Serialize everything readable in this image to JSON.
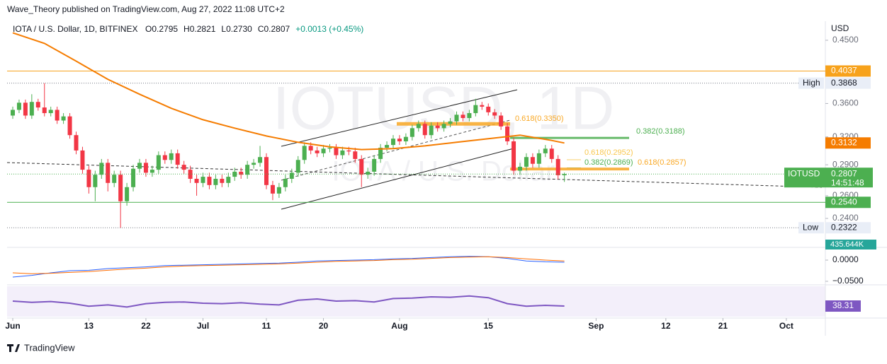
{
  "chart_data": {
    "type": "candlestick",
    "publisher": "Wave_Theory published on TradingView.com, Aug 27, 2022 11:08 UTC+2",
    "symbol": "IOTA / U.S. Dollar, 1D, BITFINEX",
    "ohlc_legend": [
      "O0.2795",
      "H0.2821",
      "L0.2730",
      "C0.2807",
      "+0.0013 (+0.45%)"
    ],
    "watermark": "IOTUSD, 1D",
    "watermark_sub": "IOTA / U.S. Dollar",
    "currency": "USD",
    "ticker": "IOTUSD",
    "countdown": "14:51:48",
    "volume_label": "435.644K",
    "footer": "TradingView",
    "log_scale": true,
    "up_color": "#4caf50",
    "down_color": "#f23645",
    "xlim": [
      -0.9,
      128.2
    ],
    "xticks": [
      {
        "value": 0,
        "label": "Jun"
      },
      {
        "value": 12,
        "label": "13"
      },
      {
        "value": 21,
        "label": "22"
      },
      {
        "value": 30,
        "label": "Jul"
      },
      {
        "value": 40,
        "label": "11"
      },
      {
        "value": 49,
        "label": "20"
      },
      {
        "value": 61,
        "label": "Aug"
      },
      {
        "value": 75,
        "label": "15"
      },
      {
        "value": 92,
        "label": "Sep"
      },
      {
        "value": 103,
        "label": "12"
      },
      {
        "value": 112,
        "label": "21"
      },
      {
        "value": 122,
        "label": "Oct"
      }
    ],
    "ylim": [
      0.2194,
      0.4813
    ],
    "yticks": [
      {
        "value": 0.45,
        "label": "0.4500"
      },
      {
        "value": 0.36,
        "label": "0.3600"
      },
      {
        "value": 0.32,
        "label": "0.3200"
      },
      {
        "value": 0.29,
        "label": "0.2900"
      },
      {
        "value": 0.26,
        "label": "0.2600"
      },
      {
        "value": 0.24,
        "label": "0.2400"
      }
    ],
    "candles": [
      [
        0.345,
        0.356,
        0.341,
        0.352
      ],
      [
        0.352,
        0.365,
        0.348,
        0.361
      ],
      [
        0.361,
        0.365,
        0.341,
        0.345
      ],
      [
        0.345,
        0.372,
        0.341,
        0.362
      ],
      [
        0.362,
        0.366,
        0.351,
        0.355
      ],
      [
        0.355,
        0.3868,
        0.344,
        0.348
      ],
      [
        0.348,
        0.356,
        0.344,
        0.352
      ],
      [
        0.352,
        0.356,
        0.335,
        0.339
      ],
      [
        0.339,
        0.348,
        0.335,
        0.344
      ],
      [
        0.344,
        0.348,
        0.318,
        0.322
      ],
      [
        0.322,
        0.326,
        0.301,
        0.305
      ],
      [
        0.305,
        0.309,
        0.281,
        0.285
      ],
      [
        0.285,
        0.289,
        0.262,
        0.268
      ],
      [
        0.268,
        0.284,
        0.255,
        0.28
      ],
      [
        0.28,
        0.296,
        0.276,
        0.292
      ],
      [
        0.292,
        0.296,
        0.264,
        0.272
      ],
      [
        0.272,
        0.284,
        0.268,
        0.28
      ],
      [
        0.28,
        0.284,
        0.2322,
        0.255
      ],
      [
        0.255,
        0.272,
        0.251,
        0.268
      ],
      [
        0.268,
        0.29,
        0.264,
        0.286
      ],
      [
        0.286,
        0.296,
        0.282,
        0.292
      ],
      [
        0.292,
        0.296,
        0.278,
        0.282
      ],
      [
        0.282,
        0.289,
        0.278,
        0.285
      ],
      [
        0.285,
        0.304,
        0.281,
        0.3
      ],
      [
        0.3,
        0.304,
        0.291,
        0.295
      ],
      [
        0.295,
        0.306,
        0.291,
        0.302
      ],
      [
        0.302,
        0.306,
        0.286,
        0.29
      ],
      [
        0.29,
        0.294,
        0.281,
        0.285
      ],
      [
        0.285,
        0.289,
        0.272,
        0.276
      ],
      [
        0.276,
        0.28,
        0.26,
        0.272
      ],
      [
        0.272,
        0.282,
        0.268,
        0.278
      ],
      [
        0.278,
        0.282,
        0.266,
        0.27
      ],
      [
        0.27,
        0.28,
        0.266,
        0.276
      ],
      [
        0.276,
        0.28,
        0.268,
        0.272
      ],
      [
        0.272,
        0.282,
        0.268,
        0.278
      ],
      [
        0.278,
        0.287,
        0.274,
        0.283
      ],
      [
        0.283,
        0.287,
        0.276,
        0.28
      ],
      [
        0.28,
        0.294,
        0.276,
        0.29
      ],
      [
        0.29,
        0.296,
        0.286,
        0.292
      ],
      [
        0.292,
        0.31,
        0.288,
        0.298
      ],
      [
        0.298,
        0.302,
        0.266,
        0.27
      ],
      [
        0.27,
        0.274,
        0.256,
        0.262
      ],
      [
        0.262,
        0.272,
        0.258,
        0.268
      ],
      [
        0.268,
        0.28,
        0.264,
        0.276
      ],
      [
        0.276,
        0.286,
        0.272,
        0.282
      ],
      [
        0.282,
        0.299,
        0.278,
        0.295
      ],
      [
        0.295,
        0.314,
        0.291,
        0.31
      ],
      [
        0.31,
        0.314,
        0.301,
        0.305
      ],
      [
        0.305,
        0.309,
        0.298,
        0.302
      ],
      [
        0.302,
        0.311,
        0.298,
        0.307
      ],
      [
        0.307,
        0.312,
        0.303,
        0.308
      ],
      [
        0.308,
        0.312,
        0.296,
        0.3
      ],
      [
        0.3,
        0.309,
        0.296,
        0.305
      ],
      [
        0.305,
        0.309,
        0.3,
        0.304
      ],
      [
        0.304,
        0.308,
        0.292,
        0.296
      ],
      [
        0.296,
        0.3,
        0.268,
        0.28
      ],
      [
        0.28,
        0.287,
        0.276,
        0.283
      ],
      [
        0.283,
        0.3,
        0.279,
        0.296
      ],
      [
        0.296,
        0.312,
        0.292,
        0.308
      ],
      [
        0.308,
        0.315,
        0.304,
        0.311
      ],
      [
        0.311,
        0.322,
        0.307,
        0.318
      ],
      [
        0.318,
        0.322,
        0.311,
        0.315
      ],
      [
        0.315,
        0.324,
        0.311,
        0.32
      ],
      [
        0.32,
        0.334,
        0.316,
        0.33
      ],
      [
        0.33,
        0.339,
        0.326,
        0.335
      ],
      [
        0.335,
        0.339,
        0.318,
        0.322
      ],
      [
        0.322,
        0.337,
        0.318,
        0.333
      ],
      [
        0.333,
        0.337,
        0.326,
        0.33
      ],
      [
        0.33,
        0.339,
        0.326,
        0.335
      ],
      [
        0.335,
        0.342,
        0.331,
        0.338
      ],
      [
        0.338,
        0.35,
        0.334,
        0.346
      ],
      [
        0.346,
        0.35,
        0.338,
        0.342
      ],
      [
        0.342,
        0.352,
        0.338,
        0.348
      ],
      [
        0.348,
        0.366,
        0.344,
        0.358
      ],
      [
        0.358,
        0.362,
        0.352,
        0.356
      ],
      [
        0.356,
        0.36,
        0.345,
        0.349
      ],
      [
        0.349,
        0.353,
        0.341,
        0.345
      ],
      [
        0.345,
        0.349,
        0.328,
        0.332
      ],
      [
        0.332,
        0.336,
        0.311,
        0.315
      ],
      [
        0.315,
        0.319,
        0.28,
        0.284
      ],
      [
        0.284,
        0.292,
        0.28,
        0.288
      ],
      [
        0.288,
        0.302,
        0.284,
        0.298
      ],
      [
        0.298,
        0.302,
        0.287,
        0.291
      ],
      [
        0.291,
        0.306,
        0.287,
        0.302
      ],
      [
        0.302,
        0.311,
        0.298,
        0.307
      ],
      [
        0.307,
        0.311,
        0.292,
        0.296
      ],
      [
        0.296,
        0.3,
        0.2755,
        0.2795
      ],
      [
        0.2795,
        0.2821,
        0.273,
        0.2807
      ]
    ],
    "ma": {
      "color": "#f57c00",
      "x": [
        0,
        5,
        10,
        15,
        20,
        25,
        30,
        35,
        40,
        45,
        50,
        55,
        60,
        65,
        70,
        75,
        80,
        85,
        87
      ],
      "values": [
        0.462,
        0.445,
        0.418,
        0.392,
        0.372,
        0.354,
        0.34,
        0.33,
        0.321,
        0.314,
        0.309,
        0.306,
        0.307,
        0.31,
        0.314,
        0.318,
        0.322,
        0.316,
        0.3132
      ]
    },
    "price_lines": [
      {
        "value": 0.4037,
        "label": "0.4037",
        "color": "#f7a21b",
        "style": "solid"
      },
      {
        "value": 0.3868,
        "label": "0.3868",
        "tag": "High",
        "color": "#787b86",
        "style": "dotted"
      },
      {
        "value": 0.254,
        "label": "0.2540",
        "color": "#4caf50",
        "style": "solid"
      },
      {
        "value": 0.2322,
        "label": "0.2322",
        "tag": "Low",
        "color": "#787b86",
        "style": "dotted"
      }
    ],
    "fib_levels": [
      {
        "label": "0.382(0.3188)",
        "value": 0.3188,
        "color": "#4caf50"
      },
      {
        "label": "0.618(0.3350)",
        "value": 0.335,
        "color": "#f9a825"
      },
      {
        "label": "0.618(0.2952)",
        "value": 0.2952,
        "color": "#f9c74f"
      },
      {
        "label": "0.382(0.2869)",
        "value": 0.2869,
        "color": "#4caf50"
      },
      {
        "label": "0.618(0.2857)",
        "value": 0.2857,
        "color": "#f9a825"
      }
    ],
    "macd": {
      "ylim": [
        -0.0617,
        0.0267
      ],
      "yticks": [
        {
          "value": 0,
          "label": "0.0000"
        },
        {
          "value": -0.05,
          "label": "−0.0500"
        }
      ],
      "x": [
        0,
        3,
        6,
        9,
        12,
        15,
        18,
        21,
        24,
        27,
        30,
        33,
        36,
        39,
        42,
        45,
        48,
        51,
        54,
        57,
        60,
        63,
        66,
        69,
        72,
        75,
        78,
        81,
        84,
        87
      ],
      "series": [
        {
          "color": "#2962ff",
          "values": [
            -0.04,
            -0.036,
            -0.03,
            -0.025,
            -0.024,
            -0.02,
            -0.018,
            -0.016,
            -0.013,
            -0.012,
            -0.011,
            -0.01,
            -0.009,
            -0.008,
            -0.007,
            -0.005,
            -0.002,
            -0.001,
            0.0,
            0.001,
            0.003,
            0.004,
            0.006,
            0.008,
            0.009,
            0.008,
            0.004,
            -0.002,
            -0.004,
            -0.005
          ]
        },
        {
          "color": "#ff6d00",
          "values": [
            -0.03,
            -0.032,
            -0.031,
            -0.029,
            -0.027,
            -0.024,
            -0.021,
            -0.019,
            -0.016,
            -0.014,
            -0.013,
            -0.012,
            -0.011,
            -0.01,
            -0.009,
            -0.007,
            -0.005,
            -0.003,
            -0.002,
            -0.001,
            0.001,
            0.002,
            0.004,
            0.006,
            0.007,
            0.008,
            0.006,
            0.003,
            0.0,
            -0.002
          ]
        }
      ]
    },
    "rsi": {
      "color": "#7e57c2",
      "ylim": [
        15,
        85
      ],
      "x": [
        0,
        3,
        6,
        9,
        12,
        15,
        18,
        21,
        24,
        27,
        30,
        33,
        36,
        39,
        42,
        45,
        48,
        51,
        54,
        57,
        60,
        63,
        66,
        69,
        72,
        75,
        78,
        81,
        84,
        87
      ],
      "values": [
        50,
        47,
        49,
        45,
        38,
        41,
        36,
        44,
        47,
        48,
        45,
        44,
        46,
        43,
        41,
        52,
        55,
        50,
        51,
        48,
        56,
        57,
        60,
        59,
        62,
        58,
        44,
        38,
        40,
        38.31
      ]
    }
  }
}
